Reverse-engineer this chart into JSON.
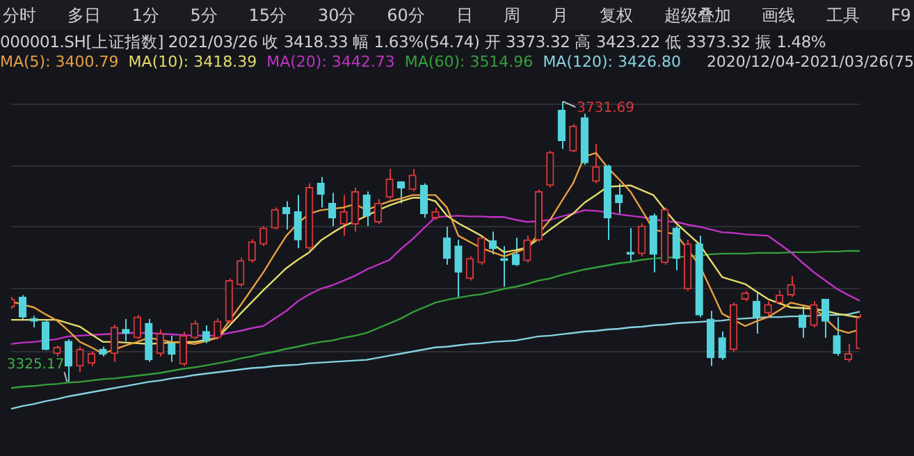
{
  "chart_data": {
    "type": "candlestick",
    "title": "000001.SH[上证指数] 2021/03/26 收 3418.33 幅 1.63%(54.74) 开 3373.32 高 3423.22 低 3373.32 振 1.48%",
    "subtitle": "2020/12/04-2021/03/26(75",
    "annotations": [
      "分时",
      "多日",
      "1分",
      "5分",
      "15分",
      "30分",
      "60分",
      "日",
      "周",
      "月",
      "复权",
      "超级叠加",
      "画线",
      "工具",
      "F9"
    ],
    "value_labels": [
      null,
      null,
      null,
      null,
      null,
      "3325.17",
      null,
      null,
      null,
      null,
      null,
      null,
      null,
      null,
      null,
      null,
      null,
      null,
      null,
      null,
      null,
      null,
      null,
      null,
      null,
      null,
      null,
      null,
      null,
      null,
      null,
      null,
      null,
      null,
      null,
      null,
      null,
      null,
      null,
      null,
      null,
      null,
      null,
      null,
      null,
      null,
      null,
      null,
      "3731.69",
      null,
      null,
      null,
      null,
      null,
      null,
      null,
      null,
      null,
      null,
      null,
      null,
      null,
      null,
      null,
      null,
      null,
      null,
      null,
      null,
      null,
      null,
      null,
      null,
      null,
      null
    ],
    "categories": [
      null,
      null,
      null,
      null,
      null,
      null,
      null,
      null,
      null,
      null,
      null,
      null,
      null,
      null,
      null,
      null,
      null,
      null,
      null,
      null,
      null,
      null,
      null,
      null,
      null,
      null,
      null,
      null,
      null,
      null,
      null,
      null,
      null,
      null,
      null,
      null,
      null,
      null,
      null,
      null,
      null,
      null,
      null,
      null,
      null,
      null,
      null,
      null,
      null,
      null,
      null,
      null,
      null,
      null,
      null,
      null,
      null,
      null,
      null,
      null,
      null,
      null,
      null,
      null,
      null,
      null,
      null,
      null,
      null,
      null,
      null,
      null,
      null,
      null,
      null
    ],
    "ohlc": [
      [
        3434,
        3448,
        3431,
        3445
      ],
      [
        3448,
        3451,
        3416,
        3419
      ],
      [
        3417,
        3421,
        3404,
        3413
      ],
      [
        3412,
        3415,
        3371,
        3372
      ],
      [
        3366,
        3378,
        3362,
        3375
      ],
      [
        3384,
        3387,
        3325.17,
        3348
      ],
      [
        3348,
        3376,
        3339,
        3372
      ],
      [
        3352,
        3369,
        3348,
        3366
      ],
      [
        3372,
        3376,
        3362,
        3365
      ],
      [
        3366,
        3408,
        3354,
        3404
      ],
      [
        3401,
        3416,
        3384,
        3395
      ],
      [
        3389,
        3422,
        3387,
        3419
      ],
      [
        3410,
        3416,
        3354,
        3357
      ],
      [
        3366,
        3401,
        3362,
        3395
      ],
      [
        3381,
        3392,
        3354,
        3365
      ],
      [
        3351,
        3398,
        3348,
        3392
      ],
      [
        3389,
        3414,
        3387,
        3410
      ],
      [
        3398,
        3407,
        3381,
        3384
      ],
      [
        3389,
        3417,
        3387,
        3413
      ],
      [
        3413,
        3475,
        3410,
        3472
      ],
      [
        3466,
        3505,
        3463,
        3501
      ],
      [
        3501,
        3532,
        3498,
        3528
      ],
      [
        3525,
        3551,
        3522,
        3548
      ],
      [
        3548,
        3578,
        3546,
        3575
      ],
      [
        3578,
        3587,
        3546,
        3569
      ],
      [
        3572,
        3596,
        3519,
        3531
      ],
      [
        3519,
        3613,
        3516,
        3607
      ],
      [
        3613,
        3622,
        3578,
        3597
      ],
      [
        3584,
        3599,
        3551,
        3563
      ],
      [
        3554,
        3596,
        3537,
        3572
      ],
      [
        3554,
        3607,
        3543,
        3601
      ],
      [
        3596,
        3601,
        3551,
        3566
      ],
      [
        3557,
        3590,
        3554,
        3584
      ],
      [
        3593,
        3634,
        3590,
        3619
      ],
      [
        3615,
        3616,
        3584,
        3606
      ],
      [
        3604,
        3634,
        3601,
        3625
      ],
      [
        3610,
        3613,
        3563,
        3569
      ],
      [
        3563,
        3578,
        3560,
        3572
      ],
      [
        3534,
        3550,
        3495,
        3504
      ],
      [
        3522,
        3531,
        3448,
        3484
      ],
      [
        3475,
        3507,
        3472,
        3504
      ],
      [
        3498,
        3537,
        3495,
        3534
      ],
      [
        3530,
        3543,
        3510,
        3518
      ],
      [
        3504,
        3522,
        3463,
        3501
      ],
      [
        3510,
        3534,
        3493,
        3495
      ],
      [
        3501,
        3537,
        3498,
        3531
      ],
      [
        3531,
        3604,
        3528,
        3601
      ],
      [
        3610,
        3660,
        3607,
        3658
      ],
      [
        3719,
        3731.69,
        3663,
        3675
      ],
      [
        3660,
        3699,
        3658,
        3696
      ],
      [
        3708,
        3714,
        3640,
        3643
      ],
      [
        3616,
        3670,
        3613,
        3637
      ],
      [
        3638,
        3640,
        3531,
        3563
      ],
      [
        3596,
        3613,
        3569,
        3585
      ],
      [
        3513,
        3548,
        3498,
        3510
      ],
      [
        3511,
        3555,
        3507,
        3551
      ],
      [
        3566,
        3569,
        3484,
        3510
      ],
      [
        3498,
        3578,
        3495,
        3575
      ],
      [
        3548,
        3551,
        3487,
        3504
      ],
      [
        3460,
        3531,
        3457,
        3525
      ],
      [
        3525,
        3537,
        3419,
        3422
      ],
      [
        3416,
        3428,
        3348,
        3360
      ],
      [
        3389,
        3398,
        3357,
        3360
      ],
      [
        3372,
        3440,
        3369,
        3437
      ],
      [
        3445,
        3457,
        3442,
        3454
      ],
      [
        3442,
        3454,
        3395,
        3419
      ],
      [
        3425,
        3442,
        3419,
        3437
      ],
      [
        3440,
        3458,
        3437,
        3451
      ],
      [
        3451,
        3478,
        3448,
        3466
      ],
      [
        3422,
        3437,
        3389,
        3404
      ],
      [
        3407,
        3442,
        3404,
        3437
      ],
      [
        3445,
        3445,
        3389,
        3413
      ],
      [
        3392,
        3419,
        3363,
        3366
      ],
      [
        3357,
        3380,
        3354,
        3366
      ],
      [
        3373.32,
        3423.22,
        3373.32,
        3418.33
      ]
    ],
    "colors": [
      "#d8383a",
      "#54d3dc",
      "#54d3dc",
      "#54d3dc",
      "#d8383a",
      "#54d3dc",
      "#d8383a",
      "#d8383a",
      "#54d3dc",
      "#d8383a",
      "#54d3dc",
      "#d8383a",
      "#54d3dc",
      "#d8383a",
      "#54d3dc",
      "#d8383a",
      "#d8383a",
      "#54d3dc",
      "#d8383a",
      "#d8383a",
      "#d8383a",
      "#d8383a",
      "#d8383a",
      "#d8383a",
      "#54d3dc",
      "#54d3dc",
      "#d8383a",
      "#54d3dc",
      "#54d3dc",
      "#d8383a",
      "#d8383a",
      "#54d3dc",
      "#d8383a",
      "#d8383a",
      "#54d3dc",
      "#d8383a",
      "#54d3dc",
      "#d8383a",
      "#54d3dc",
      "#54d3dc",
      "#d8383a",
      "#d8383a",
      "#54d3dc",
      "#54d3dc",
      "#54d3dc",
      "#d8383a",
      "#d8383a",
      "#d8383a",
      "#54d3dc",
      "#d8383a",
      "#54d3dc",
      "#d8383a",
      "#54d3dc",
      "#54d3dc",
      "#54d3dc",
      "#d8383a",
      "#54d3dc",
      "#d8383a",
      "#54d3dc",
      "#d8383a",
      "#54d3dc",
      "#54d3dc",
      "#54d3dc",
      "#d8383a",
      "#d8383a",
      "#54d3dc",
      "#d8383a",
      "#d8383a",
      "#d8383a",
      "#54d3dc",
      "#d8383a",
      "#54d3dc",
      "#54d3dc",
      "#d8383a",
      "#d8383a"
    ],
    "series": [
      {
        "type": "line",
        "name": "MA(5): 3400.79",
        "color": "#e8a040",
        "values": [
          3442,
          3437,
          3433,
          3423,
          3414,
          3399,
          3383,
          3375,
          3366,
          3372,
          3378,
          3383,
          3389,
          3386,
          3383,
          3382,
          3380,
          3384,
          3389,
          3413,
          3436,
          3460,
          3484,
          3511,
          3537,
          3555,
          3569,
          3574,
          3576,
          3578,
          3583,
          3574,
          3581,
          3587,
          3591,
          3596,
          3596,
          3596,
          3578,
          3537,
          3528,
          3519,
          3513,
          3507,
          3513,
          3519,
          3540,
          3560,
          3587,
          3613,
          3652,
          3657,
          3636,
          3619,
          3601,
          3574,
          3546,
          3542,
          3539,
          3517,
          3495,
          3460,
          3424,
          3415,
          3406,
          3413,
          3419,
          3429,
          3440,
          3436,
          3433,
          3417,
          3401,
          3396,
          3400.79
        ]
      },
      {
        "type": "line",
        "name": "MA(10): 3418.39",
        "color": "#e4dc6a",
        "values": [
          3415,
          3415,
          3415,
          3415,
          3415,
          3410,
          3405,
          3394,
          3383,
          3383,
          3382,
          3381,
          3380,
          3381,
          3382,
          3383,
          3383,
          3386,
          3389,
          3406,
          3424,
          3441,
          3458,
          3474,
          3490,
          3502,
          3513,
          3530,
          3541,
          3551,
          3558,
          3566,
          3574,
          3581,
          3587,
          3592,
          3592,
          3587,
          3566,
          3555,
          3546,
          3537,
          3525,
          3513,
          3516,
          3520,
          3533,
          3546,
          3558,
          3569,
          3585,
          3596,
          3608,
          3609,
          3610,
          3603,
          3596,
          3575,
          3555,
          3540,
          3525,
          3501,
          3477,
          3472,
          3467,
          3456,
          3445,
          3439,
          3433,
          3432,
          3431,
          3428,
          3424,
          3421,
          3418.39
        ]
      },
      {
        "type": "line",
        "name": "MA(20): 3442.73",
        "color": "#c032c4",
        "values": [
          3380,
          3382,
          3383,
          3385,
          3387,
          3391,
          3392,
          3393,
          3394,
          3395,
          3396,
          3396,
          3396,
          3395,
          3394,
          3393,
          3392,
          3392,
          3392,
          3396,
          3399,
          3403,
          3406,
          3417,
          3428,
          3442,
          3452,
          3460,
          3465,
          3472,
          3479,
          3488,
          3495,
          3502,
          3518,
          3532,
          3548,
          3564,
          3565,
          3566,
          3565,
          3565,
          3564,
          3564,
          3560,
          3557,
          3558,
          3560,
          3565,
          3569,
          3574,
          3573,
          3571,
          3568,
          3566,
          3564,
          3561,
          3558,
          3557,
          3553,
          3550,
          3546,
          3542,
          3541,
          3539,
          3538,
          3537,
          3525,
          3513,
          3498,
          3484,
          3472,
          3460,
          3451,
          3442.73
        ]
      },
      {
        "type": "line",
        "name": "MA(60): 3514.96",
        "color": "#34a03a",
        "values": [
          3316,
          3318,
          3319,
          3321,
          3322,
          3324,
          3325,
          3327,
          3329,
          3330,
          3332,
          3334,
          3336,
          3338,
          3341,
          3344,
          3346,
          3349,
          3352,
          3355,
          3359,
          3362,
          3366,
          3369,
          3373,
          3376,
          3380,
          3383,
          3385,
          3389,
          3392,
          3396,
          3403,
          3410,
          3417,
          3426,
          3433,
          3440,
          3444,
          3447,
          3450,
          3452,
          3456,
          3460,
          3463,
          3467,
          3472,
          3475,
          3480,
          3484,
          3488,
          3491,
          3494,
          3497,
          3499,
          3502,
          3504,
          3505,
          3506,
          3507,
          3508,
          3510,
          3511,
          3511,
          3511,
          3512,
          3512,
          3512,
          3513,
          3513,
          3513,
          3514,
          3514,
          3515,
          3514.96
        ]
      },
      {
        "type": "line",
        "name": "MA(120): 3426.80",
        "color": "#86d2e0",
        "values": [
          3286,
          3290,
          3293,
          3297,
          3300,
          3304,
          3307,
          3310,
          3313,
          3316,
          3319,
          3322,
          3325,
          3327,
          3330,
          3332,
          3335,
          3337,
          3339,
          3341,
          3343,
          3345,
          3346,
          3348,
          3349,
          3350,
          3352,
          3353,
          3354,
          3355,
          3356,
          3357,
          3360,
          3363,
          3366,
          3369,
          3372,
          3375,
          3376,
          3378,
          3380,
          3381,
          3383,
          3384,
          3385,
          3388,
          3391,
          3392,
          3394,
          3396,
          3398,
          3399,
          3401,
          3402,
          3404,
          3405,
          3407,
          3408,
          3410,
          3411,
          3412,
          3413,
          3414,
          3416,
          3417,
          3418,
          3419,
          3419,
          3420,
          3420,
          3421,
          3422,
          3422,
          3423,
          3426.8
        ]
      }
    ],
    "yticks": [
      {
        "value": 3728,
        "label": null
      },
      {
        "value": 3638,
        "label": null
      },
      {
        "value": 3550,
        "label": null
      },
      {
        "value": 3460,
        "label": null
      },
      {
        "value": 3369,
        "label": null
      }
    ],
    "grid": "y",
    "legend": "top left",
    "line_style": "solid",
    "marker": "none"
  }
}
